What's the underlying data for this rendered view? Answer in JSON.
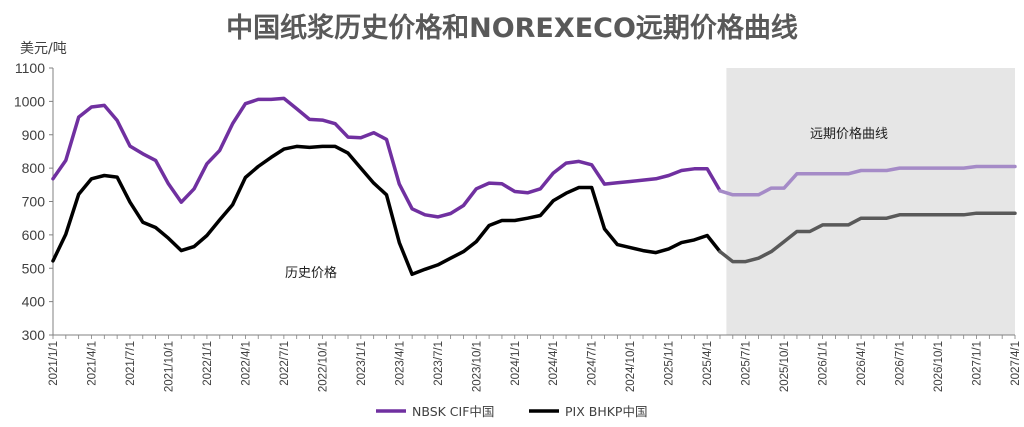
{
  "chart_data": {
    "type": "line",
    "title": "中国纸浆历史价格和NOREXECO远期价格曲线",
    "ylabel": "美元/吨",
    "ylim": [
      300,
      1100
    ],
    "yticks": [
      300,
      400,
      500,
      600,
      700,
      800,
      900,
      1000,
      1100
    ],
    "xlabels": [
      "2021/1/1",
      "2021/4/1",
      "2021/7/1",
      "2021/10/1",
      "2022/1/1",
      "2022/4/1",
      "2022/7/1",
      "2022/10/1",
      "2023/1/1",
      "2023/4/1",
      "2023/7/1",
      "2023/10/1",
      "2024/1/1",
      "2024/4/1",
      "2024/7/1",
      "2024/10/1",
      "2025/1/1",
      "2025/4/1",
      "2025/7/1",
      "2025/10/1",
      "2026/1/1",
      "2026/4/1",
      "2026/7/1",
      "2026/10/1",
      "2027/1/1",
      "2027/4/1"
    ],
    "months": 76,
    "forward_start_month": 53,
    "forward_region_label": "远期价格曲线",
    "history_label": "历史价格",
    "grid": false,
    "legend_position": "bottom",
    "series": [
      {
        "name": "NBSK CIF中国",
        "color": "#7030A0",
        "forward_color": "#A58BC7",
        "points": [
          [
            0,
            768
          ],
          [
            1,
            823
          ],
          [
            2,
            953
          ],
          [
            3,
            983
          ],
          [
            4,
            988
          ],
          [
            5,
            943
          ],
          [
            6,
            866
          ],
          [
            7,
            843
          ],
          [
            8,
            823
          ],
          [
            9,
            753
          ],
          [
            10,
            698
          ],
          [
            11,
            738
          ],
          [
            12,
            813
          ],
          [
            13,
            853
          ],
          [
            14,
            933
          ],
          [
            15,
            993
          ],
          [
            16,
            1006
          ],
          [
            17,
            1006
          ],
          [
            18,
            1009
          ],
          [
            19,
            978
          ],
          [
            20,
            946
          ],
          [
            21,
            944
          ],
          [
            22,
            933
          ],
          [
            23,
            893
          ],
          [
            24,
            891
          ],
          [
            25,
            906
          ],
          [
            26,
            886
          ],
          [
            27,
            752
          ],
          [
            28,
            678
          ],
          [
            29,
            660
          ],
          [
            30,
            654
          ],
          [
            31,
            664
          ],
          [
            32,
            688
          ],
          [
            33,
            738
          ],
          [
            34,
            755
          ],
          [
            35,
            753
          ],
          [
            36,
            730
          ],
          [
            37,
            726
          ],
          [
            38,
            738
          ],
          [
            39,
            785
          ],
          [
            40,
            815
          ],
          [
            41,
            820
          ],
          [
            42,
            810
          ],
          [
            43,
            752
          ],
          [
            44,
            756
          ],
          [
            45,
            760
          ],
          [
            46,
            764
          ],
          [
            47,
            768
          ],
          [
            48,
            778
          ],
          [
            49,
            793
          ],
          [
            50,
            798
          ],
          [
            51,
            798
          ],
          [
            52,
            732
          ],
          [
            53,
            720
          ],
          [
            54,
            720
          ],
          [
            55,
            720
          ],
          [
            56,
            740
          ],
          [
            57,
            740
          ],
          [
            58,
            783
          ],
          [
            59,
            783
          ],
          [
            60,
            783
          ],
          [
            61,
            783
          ],
          [
            62,
            783
          ],
          [
            63,
            793
          ],
          [
            64,
            793
          ],
          [
            65,
            793
          ],
          [
            66,
            800
          ],
          [
            67,
            800
          ],
          [
            68,
            800
          ],
          [
            69,
            800
          ],
          [
            70,
            800
          ],
          [
            71,
            800
          ],
          [
            72,
            805
          ],
          [
            73,
            805
          ],
          [
            74,
            805
          ],
          [
            75,
            805
          ]
        ]
      },
      {
        "name": "PIX BHKP中国",
        "color": "#000000",
        "forward_color": "#595959",
        "points": [
          [
            0,
            522
          ],
          [
            1,
            602
          ],
          [
            2,
            722
          ],
          [
            3,
            768
          ],
          [
            4,
            778
          ],
          [
            5,
            773
          ],
          [
            6,
            698
          ],
          [
            7,
            638
          ],
          [
            8,
            622
          ],
          [
            9,
            590
          ],
          [
            10,
            553
          ],
          [
            11,
            565
          ],
          [
            12,
            598
          ],
          [
            13,
            645
          ],
          [
            14,
            690
          ],
          [
            15,
            772
          ],
          [
            16,
            805
          ],
          [
            17,
            832
          ],
          [
            18,
            857
          ],
          [
            19,
            865
          ],
          [
            20,
            862
          ],
          [
            21,
            865
          ],
          [
            22,
            865
          ],
          [
            23,
            845
          ],
          [
            24,
            800
          ],
          [
            25,
            755
          ],
          [
            26,
            720
          ],
          [
            27,
            577
          ],
          [
            28,
            482
          ],
          [
            29,
            497
          ],
          [
            30,
            510
          ],
          [
            31,
            530
          ],
          [
            32,
            550
          ],
          [
            33,
            580
          ],
          [
            34,
            628
          ],
          [
            35,
            643
          ],
          [
            36,
            643
          ],
          [
            37,
            650
          ],
          [
            38,
            658
          ],
          [
            39,
            702
          ],
          [
            40,
            725
          ],
          [
            41,
            742
          ],
          [
            42,
            742
          ],
          [
            43,
            618
          ],
          [
            44,
            571
          ],
          [
            45,
            562
          ],
          [
            46,
            553
          ],
          [
            47,
            547
          ],
          [
            48,
            558
          ],
          [
            49,
            577
          ],
          [
            50,
            585
          ],
          [
            51,
            598
          ],
          [
            52,
            550
          ],
          [
            53,
            520
          ],
          [
            54,
            520
          ],
          [
            55,
            530
          ],
          [
            56,
            550
          ],
          [
            57,
            580
          ],
          [
            58,
            610
          ],
          [
            59,
            610
          ],
          [
            60,
            630
          ],
          [
            61,
            630
          ],
          [
            62,
            630
          ],
          [
            63,
            650
          ],
          [
            64,
            650
          ],
          [
            65,
            650
          ],
          [
            66,
            660
          ],
          [
            67,
            660
          ],
          [
            68,
            660
          ],
          [
            69,
            660
          ],
          [
            70,
            660
          ],
          [
            71,
            660
          ],
          [
            72,
            665
          ],
          [
            73,
            665
          ],
          [
            74,
            665
          ],
          [
            75,
            665
          ]
        ]
      }
    ]
  }
}
